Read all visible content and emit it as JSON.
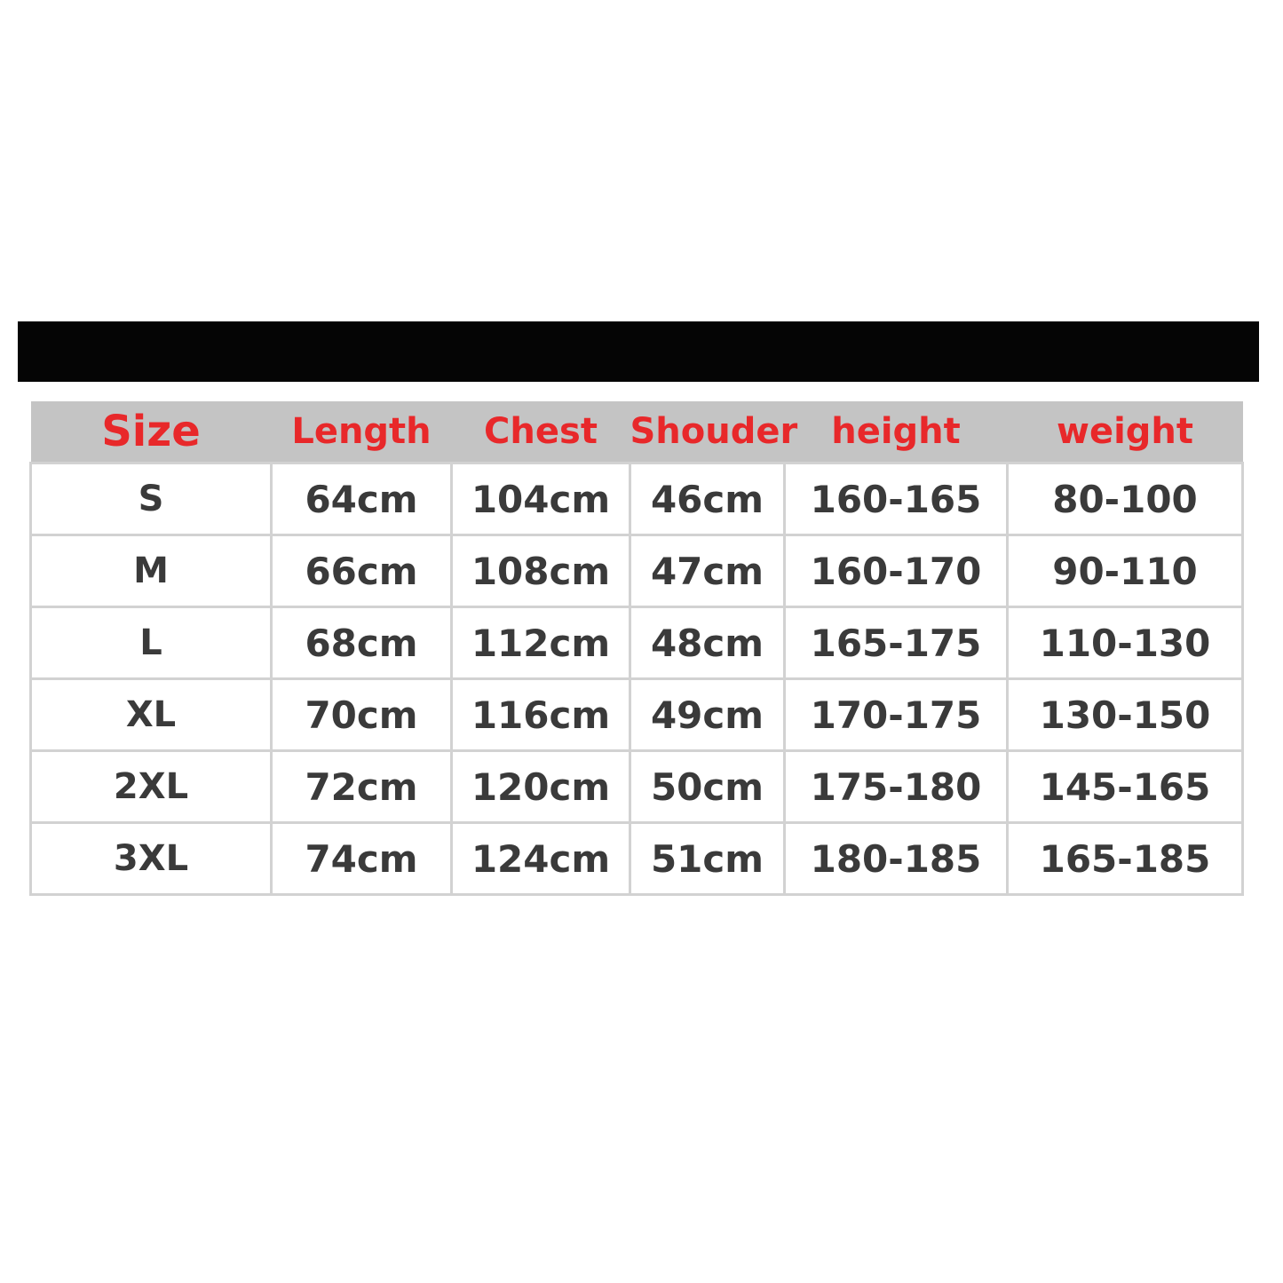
{
  "headers": [
    "Size",
    "Length",
    "Chest",
    "Shouder",
    "height",
    "weight"
  ],
  "rows": [
    [
      "S",
      "64cm",
      "104cm",
      "46cm",
      "160-165",
      "80-100"
    ],
    [
      "M",
      "66cm",
      "108cm",
      "47cm",
      "160-170",
      "90-110"
    ],
    [
      "L",
      "68cm",
      "112cm",
      "48cm",
      "165-175",
      "110-130"
    ],
    [
      "XL",
      "70cm",
      "116cm",
      "49cm",
      "170-175",
      "130-150"
    ],
    [
      "2XL",
      "72cm",
      "120cm",
      "50cm",
      "175-180",
      "145-165"
    ],
    [
      "3XL",
      "74cm",
      "124cm",
      "51cm",
      "180-185",
      "165-185"
    ]
  ],
  "colors": {
    "header_text": "#e8282a",
    "header_bg": "#c4c4c4",
    "cell_text": "#3a3a3a",
    "banner": "#050505"
  }
}
